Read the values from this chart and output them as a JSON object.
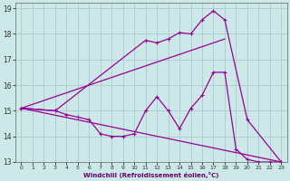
{
  "xlabel": "Windchill (Refroidissement éolien,°C)",
  "background_color": "#cce8e8",
  "grid_color": "#aacccc",
  "line_color": "#990099",
  "xlim": [
    -0.5,
    23.5
  ],
  "ylim": [
    13.0,
    19.2
  ],
  "xticks": [
    0,
    1,
    2,
    3,
    4,
    5,
    6,
    7,
    8,
    9,
    10,
    11,
    12,
    13,
    14,
    15,
    16,
    17,
    18,
    19,
    20,
    21,
    22,
    23
  ],
  "yticks": [
    13,
    14,
    15,
    16,
    17,
    18,
    19
  ],
  "series": [
    {
      "x": [
        0,
        23
      ],
      "y": [
        15.1,
        13.0
      ]
    },
    {
      "x": [
        0,
        18
      ],
      "y": [
        15.1,
        17.8
      ]
    },
    {
      "x": [
        0,
        3,
        11,
        12,
        13,
        14,
        15,
        16,
        17,
        18,
        20,
        23
      ],
      "y": [
        15.1,
        15.0,
        17.75,
        17.65,
        17.8,
        18.05,
        18.0,
        18.55,
        18.9,
        18.55,
        14.65,
        13.0
      ]
    },
    {
      "x": [
        0,
        3,
        4,
        5,
        6,
        7,
        8,
        9,
        10,
        11,
        12,
        13,
        14,
        15,
        16,
        17,
        18,
        19,
        20,
        21,
        22,
        23
      ],
      "y": [
        15.1,
        15.0,
        14.85,
        14.75,
        14.65,
        14.1,
        14.0,
        14.0,
        14.1,
        15.0,
        15.55,
        15.0,
        14.3,
        15.1,
        15.6,
        16.5,
        16.5,
        13.5,
        13.1,
        13.0,
        13.0,
        13.0
      ]
    }
  ]
}
